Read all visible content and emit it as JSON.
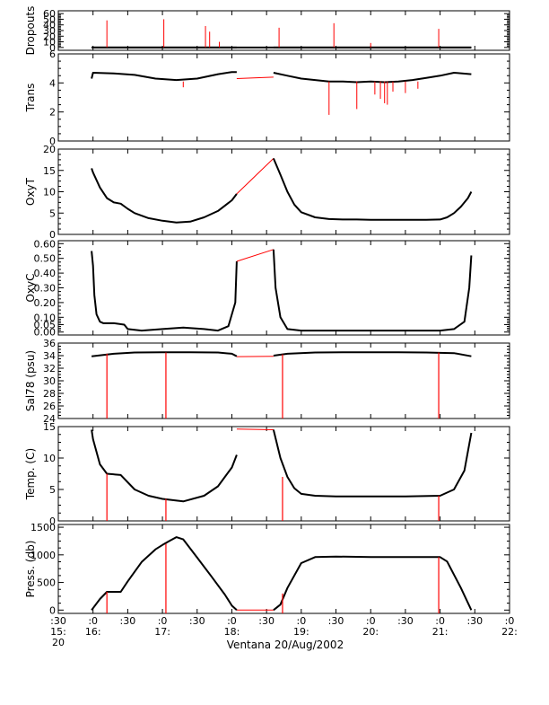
{
  "chart_data": {
    "type": "line",
    "xlabel": "Ventana 20/Aug/2002",
    "x_unit": "hours (decimal) on 20/Aug/2002",
    "xlim": [
      15.5,
      22.0
    ],
    "colors": {
      "data": "#000000",
      "flagged": "#ff0000",
      "axes": "#000000"
    },
    "x_ticks": [
      {
        "t": 15.5,
        "line1": ":30",
        "line2": "15:",
        "line3": "20"
      },
      {
        "t": 16.0,
        "line1": ":0",
        "line2": "16:",
        "line3": ""
      },
      {
        "t": 16.5,
        "line1": ":30",
        "line2": "",
        "line3": ""
      },
      {
        "t": 17.0,
        "line1": ":0",
        "line2": "17:",
        "line3": ""
      },
      {
        "t": 17.5,
        "line1": ":30",
        "line2": "",
        "line3": ""
      },
      {
        "t": 18.0,
        "line1": ":0",
        "line2": "18:",
        "line3": ""
      },
      {
        "t": 18.5,
        "line1": ":30",
        "line2": "",
        "line3": ""
      },
      {
        "t": 19.0,
        "line1": ":0",
        "line2": "19:",
        "line3": ""
      },
      {
        "t": 19.5,
        "line1": ":30",
        "line2": "",
        "line3": ""
      },
      {
        "t": 20.0,
        "line1": ":0",
        "line2": "20:",
        "line3": ""
      },
      {
        "t": 20.5,
        "line1": ":30",
        "line2": "",
        "line3": ""
      },
      {
        "t": 21.0,
        "line1": ":0",
        "line2": "21:",
        "line3": ""
      },
      {
        "t": 21.5,
        "line1": ":30",
        "line2": "",
        "line3": ""
      },
      {
        "t": 22.0,
        "line1": ":0",
        "line2": "22:",
        "line3": ""
      }
    ],
    "panels": [
      {
        "id": "dropouts",
        "ylabel": "Dropouts",
        "ylim": [
          -5,
          65
        ],
        "yticks": [
          0,
          10,
          20,
          30,
          40,
          50,
          60
        ],
        "series": [
          {
            "x": [
              15.98,
              18.07,
              18.6,
              21.45
            ],
            "y": [
              0,
              0,
              0,
              0
            ]
          }
        ],
        "spikes": [
          {
            "x": 16.2,
            "y": 48
          },
          {
            "x": 17.02,
            "y": 50
          },
          {
            "x": 17.62,
            "y": 38
          },
          {
            "x": 17.68,
            "y": 28
          },
          {
            "x": 17.82,
            "y": 10
          },
          {
            "x": 18.68,
            "y": 35
          },
          {
            "x": 19.47,
            "y": 43
          },
          {
            "x": 20.0,
            "y": 8
          },
          {
            "x": 20.98,
            "y": 33
          }
        ]
      },
      {
        "id": "trans",
        "ylabel": "Trans",
        "ylim": [
          0,
          6
        ],
        "yticks": [
          0,
          2,
          4,
          6
        ],
        "series": [
          {
            "x": [
              15.98,
              16.0,
              16.3,
              16.6,
              16.9,
              17.2,
              17.5,
              17.8,
              18.0,
              18.07
            ],
            "y": [
              4.3,
              4.7,
              4.65,
              4.55,
              4.3,
              4.2,
              4.3,
              4.6,
              4.75,
              4.75
            ]
          },
          {
            "x": [
              18.07,
              18.6
            ],
            "y": [
              4.3,
              4.4
            ]
          },
          {
            "x": [
              18.6,
              18.8,
              19.0,
              19.2,
              19.4,
              19.6,
              19.8,
              20.0,
              20.2,
              20.4,
              20.6,
              20.8,
              21.0,
              21.2,
              21.45
            ],
            "y": [
              4.7,
              4.5,
              4.3,
              4.2,
              4.1,
              4.1,
              4.05,
              4.1,
              4.05,
              4.1,
              4.2,
              4.35,
              4.5,
              4.7,
              4.6
            ]
          }
        ],
        "spikes": [
          {
            "x": 17.3,
            "y": 3.7
          },
          {
            "x": 19.4,
            "y": 1.8
          },
          {
            "x": 19.8,
            "y": 2.2
          },
          {
            "x": 20.06,
            "y": 3.2
          },
          {
            "x": 20.14,
            "y": 2.9
          },
          {
            "x": 20.2,
            "y": 2.6
          },
          {
            "x": 20.24,
            "y": 2.5
          },
          {
            "x": 20.32,
            "y": 3.4
          },
          {
            "x": 20.5,
            "y": 3.3
          },
          {
            "x": 20.68,
            "y": 3.6
          }
        ]
      },
      {
        "id": "oxyt",
        "ylabel": "OxyT",
        "ylim": [
          0,
          20
        ],
        "yticks": [
          0,
          5,
          10,
          15,
          20
        ],
        "series": [
          {
            "x": [
              15.98,
              16.0,
              16.1,
              16.2,
              16.3,
              16.4,
              16.5,
              16.6,
              16.8,
              17.0,
              17.2,
              17.4,
              17.6,
              17.8,
              18.0,
              18.07
            ],
            "y": [
              15.5,
              14.5,
              11.0,
              8.5,
              7.5,
              7.2,
              6.0,
              5.0,
              3.8,
              3.2,
              2.8,
              3.0,
              4.0,
              5.5,
              8.0,
              9.5
            ]
          },
          {
            "x": [
              18.07,
              18.6
            ],
            "y": [
              9.5,
              17.8
            ]
          },
          {
            "x": [
              18.6,
              18.7,
              18.8,
              18.9,
              19.0,
              19.2,
              19.4,
              19.6,
              19.8,
              20.0,
              20.2,
              20.4,
              20.6,
              20.8,
              21.0,
              21.1,
              21.2,
              21.3,
              21.4,
              21.45
            ],
            "y": [
              17.8,
              14.0,
              10.0,
              7.0,
              5.2,
              4.0,
              3.6,
              3.5,
              3.5,
              3.4,
              3.4,
              3.4,
              3.4,
              3.4,
              3.5,
              4.0,
              5.0,
              6.5,
              8.5,
              10.0
            ]
          }
        ],
        "spikes": []
      },
      {
        "id": "oxyc",
        "ylabel": "OxyC",
        "ylim": [
          -0.02,
          0.62
        ],
        "yticks": [
          0.0,
          0.05,
          0.1,
          0.2,
          0.3,
          0.4,
          0.5,
          0.6
        ],
        "ytick_labels": [
          "0.00",
          "0.05",
          "0.10",
          "0.20",
          "0.30",
          "0.40",
          "0.50",
          "0.60"
        ],
        "series": [
          {
            "x": [
              15.98,
              16.0,
              16.02,
              16.05,
              16.1,
              16.15,
              16.3,
              16.45,
              16.5,
              16.7,
              17.0,
              17.3,
              17.6,
              17.8,
              17.95,
              18.05,
              18.07
            ],
            "y": [
              0.55,
              0.45,
              0.25,
              0.12,
              0.07,
              0.06,
              0.06,
              0.05,
              0.02,
              0.01,
              0.02,
              0.03,
              0.02,
              0.01,
              0.04,
              0.2,
              0.48
            ]
          },
          {
            "x": [
              18.07,
              18.6
            ],
            "y": [
              0.48,
              0.56
            ]
          },
          {
            "x": [
              18.6,
              18.63,
              18.7,
              18.8,
              19.0,
              19.5,
              20.0,
              20.5,
              21.0,
              21.2,
              21.35,
              21.42,
              21.45
            ],
            "y": [
              0.56,
              0.3,
              0.1,
              0.02,
              0.01,
              0.01,
              0.01,
              0.01,
              0.01,
              0.02,
              0.07,
              0.3,
              0.52
            ]
          }
        ],
        "spikes": []
      },
      {
        "id": "sal",
        "ylabel": "Sal78 (psu)",
        "ylim": [
          24,
          36
        ],
        "yticks": [
          24,
          26,
          28,
          30,
          32,
          34,
          36
        ],
        "series": [
          {
            "x": [
              15.98,
              16.3,
              16.6,
              17.0,
              17.4,
              17.8,
              18.0,
              18.07
            ],
            "y": [
              33.9,
              34.3,
              34.5,
              34.55,
              34.55,
              34.5,
              34.3,
              33.9
            ]
          },
          {
            "x": [
              18.07,
              18.6
            ],
            "y": [
              33.85,
              33.9
            ]
          },
          {
            "x": [
              18.6,
              18.8,
              19.2,
              19.6,
              20.0,
              20.4,
              20.8,
              21.2,
              21.45
            ],
            "y": [
              34.0,
              34.3,
              34.5,
              34.55,
              34.55,
              34.55,
              34.5,
              34.4,
              33.9
            ]
          }
        ],
        "drops": [
          {
            "x": 16.2,
            "y_top": 34.3
          },
          {
            "x": 17.05,
            "y_top": 34.5
          },
          {
            "x": 18.73,
            "y_top": 34.2
          },
          {
            "x": 20.98,
            "y_top": 34.5
          }
        ]
      },
      {
        "id": "temp",
        "ylabel": "Temp. (C)",
        "ylim": [
          0,
          15
        ],
        "yticks": [
          0,
          5,
          10,
          15
        ],
        "series": [
          {
            "x": [
              15.98,
              16.0,
              16.1,
              16.2,
              16.4,
              16.6,
              16.8,
              17.0,
              17.3,
              17.6,
              17.8,
              18.0,
              18.07
            ],
            "y": [
              14.5,
              13.0,
              9.0,
              7.5,
              7.3,
              5.0,
              4.0,
              3.5,
              3.1,
              4.0,
              5.5,
              8.5,
              10.5
            ]
          },
          {
            "x": [
              18.07,
              18.6
            ],
            "y": [
              14.6,
              14.5
            ]
          },
          {
            "x": [
              18.6,
              18.7,
              18.8,
              18.9,
              19.0,
              19.2,
              19.5,
              20.0,
              20.5,
              21.0,
              21.2,
              21.35,
              21.45
            ],
            "y": [
              14.5,
              10.0,
              7.0,
              5.2,
              4.3,
              4.0,
              3.9,
              3.9,
              3.9,
              4.0,
              5.0,
              8.0,
              14.0
            ]
          }
        ],
        "drops": [
          {
            "x": 16.2,
            "y_top": 7.5
          },
          {
            "x": 17.05,
            "y_top": 3.5
          },
          {
            "x": 18.73,
            "y_top": 7.0
          },
          {
            "x": 20.98,
            "y_top": 4.0
          }
        ]
      },
      {
        "id": "press",
        "ylabel": "Press. (db)",
        "ylim": [
          -60,
          1550
        ],
        "yticks": [
          0,
          500,
          1000,
          1500
        ],
        "series": [
          {
            "x": [
              15.98,
              16.1,
              16.2,
              16.4,
              16.5,
              16.7,
              16.9,
              17.0,
              17.1,
              17.2,
              17.3,
              17.5,
              17.7,
              17.9,
              18.0,
              18.07
            ],
            "y": [
              0,
              200,
              330,
              330,
              520,
              870,
              1100,
              1180,
              1250,
              1320,
              1280,
              950,
              620,
              280,
              80,
              0
            ]
          },
          {
            "x": [
              18.07,
              18.6
            ],
            "y": [
              0,
              0
            ]
          },
          {
            "x": [
              18.6,
              18.7,
              18.8,
              19.0,
              19.2,
              19.5,
              20.0,
              20.5,
              21.0,
              21.1,
              21.3,
              21.45
            ],
            "y": [
              0,
              100,
              400,
              850,
              960,
              970,
              960,
              960,
              960,
              880,
              400,
              0
            ]
          }
        ],
        "drops": [
          {
            "x": 16.2,
            "y_top": 330
          },
          {
            "x": 17.05,
            "y_top": 1200
          },
          {
            "x": 18.73,
            "y_top": 300
          },
          {
            "x": 20.98,
            "y_top": 960
          }
        ]
      }
    ]
  }
}
